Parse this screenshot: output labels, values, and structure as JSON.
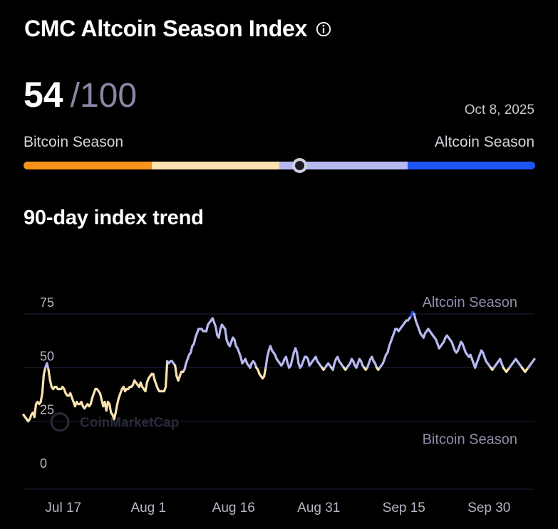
{
  "header": {
    "title": "CMC Altcoin Season Index",
    "info_icon": "info-icon"
  },
  "score": {
    "value": "54",
    "max": "/100",
    "date": "Oct 8, 2025"
  },
  "gauge": {
    "left_label": "Bitcoin Season",
    "right_label": "Altcoin Season",
    "current": 54,
    "segments": [
      {
        "color": "#F7931A"
      },
      {
        "color": "#FCE2B0"
      },
      {
        "color": "#B6B9F0"
      },
      {
        "color": "#1E55F5"
      }
    ]
  },
  "trend": {
    "title": "90-day index trend"
  },
  "colors": {
    "bitcoin": "#FCE2B0",
    "neutral": "#B6B9F0",
    "altcoin": "#1E55F5",
    "grid": "#1a1a34",
    "axis_text": "#b7b7c4",
    "zone_text": "#8f8fae"
  },
  "chart_data": {
    "type": "line",
    "title": "90-day index trend",
    "xlabel": "",
    "ylabel": "",
    "ylim": [
      0,
      75
    ],
    "yticks": [
      0,
      25,
      50,
      75
    ],
    "grid": true,
    "x_tick_labels": [
      "Jul 17",
      "Aug 1",
      "Aug 16",
      "Aug 31",
      "Sep 15",
      "Sep 30"
    ],
    "x_tick_days": [
      7,
      22,
      37,
      52,
      67,
      82
    ],
    "annotations": {
      "top": {
        "text": "Altcoin Season",
        "value": 75
      },
      "bottom": {
        "text": "Bitcoin Season",
        "value": 25
      }
    },
    "watermark": "CoinMarketCap",
    "series": [
      {
        "values": [
          28,
          27,
          26,
          25,
          26,
          28,
          29,
          27,
          33,
          34,
          33,
          34,
          38,
          47,
          50,
          52,
          49,
          44,
          41,
          40,
          41,
          41,
          40,
          40,
          40,
          41,
          40,
          38,
          37,
          37,
          38,
          36,
          34,
          32,
          34,
          33,
          33,
          34,
          32,
          31,
          32,
          33,
          32,
          33,
          36,
          38,
          40,
          40,
          39,
          38,
          35,
          32,
          34,
          30,
          34,
          33,
          29,
          28,
          26,
          29,
          33,
          36,
          38,
          40,
          41,
          39,
          40,
          40,
          41,
          41,
          42,
          44,
          43,
          42,
          41,
          43,
          41,
          40,
          39,
          43,
          45,
          46,
          47,
          47,
          44,
          42,
          40,
          39,
          39,
          39,
          39,
          41,
          53,
          52,
          53,
          53,
          52,
          51,
          46,
          44,
          46,
          48,
          48,
          49,
          52,
          54,
          56,
          57,
          60,
          61,
          64,
          66,
          68,
          68,
          68,
          67,
          67,
          67,
          70,
          71,
          72,
          73,
          71,
          69,
          65,
          64,
          68,
          70,
          69,
          68,
          63,
          61,
          60,
          62,
          64,
          63,
          60,
          59,
          57,
          55,
          52,
          53,
          54,
          52,
          51,
          50,
          52,
          53,
          52,
          50,
          49,
          47,
          46,
          45,
          46,
          50,
          55,
          58,
          60,
          58,
          57,
          56,
          54,
          53,
          52,
          51,
          52,
          54,
          55,
          52,
          50,
          51,
          54,
          57,
          59,
          57,
          52,
          50,
          51,
          53,
          55,
          55,
          54,
          51,
          52,
          53,
          54,
          55,
          53,
          52,
          51,
          50,
          49,
          50,
          51,
          52,
          51,
          50,
          49,
          52,
          54,
          55,
          53,
          52,
          51,
          50,
          49,
          50,
          51,
          52,
          54,
          53,
          51,
          50,
          52,
          54,
          53,
          51,
          50,
          49,
          50,
          52,
          54,
          55,
          53,
          52,
          50,
          49,
          50,
          51,
          52,
          54,
          56,
          57,
          60,
          62,
          64,
          66,
          68,
          68,
          67,
          68,
          69,
          70,
          71,
          72,
          72,
          73,
          74,
          76,
          75,
          72,
          70,
          68,
          66,
          65,
          64,
          66,
          67,
          68,
          67,
          66,
          65,
          64,
          63,
          61,
          59,
          60,
          61,
          62,
          64,
          65,
          64,
          63,
          62,
          60,
          58,
          57,
          58,
          60,
          62,
          61,
          59,
          57,
          56,
          55,
          56,
          54,
          52,
          50,
          52,
          54,
          56,
          58,
          57,
          55,
          53,
          52,
          51,
          50,
          49,
          50,
          51,
          52,
          53,
          54,
          52,
          50,
          49,
          48,
          49,
          50,
          51,
          52,
          53,
          54,
          53,
          52,
          51,
          50,
          49,
          48,
          49,
          50,
          51,
          52,
          53,
          54
        ]
      }
    ]
  }
}
